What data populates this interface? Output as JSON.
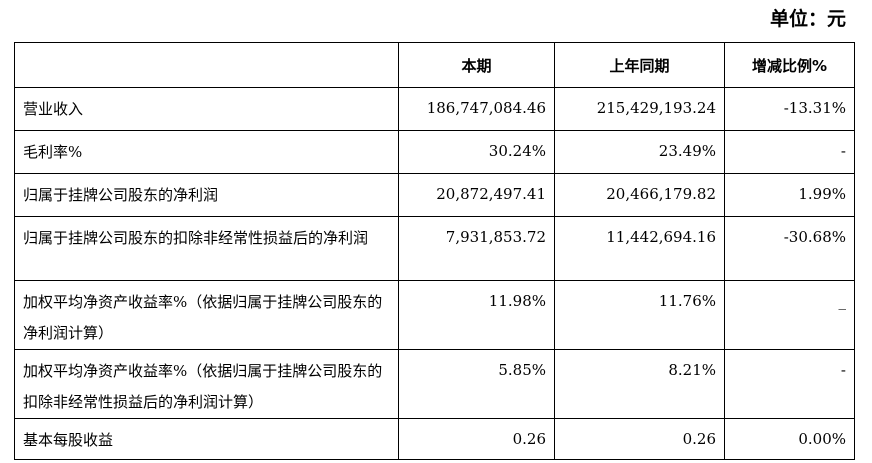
{
  "unit_label": "单位：元",
  "table": {
    "headers": [
      "",
      "本期",
      "上年同期",
      "增减比例%"
    ],
    "rows": [
      {
        "label": "营业收入",
        "current": "186,747,084.46",
        "prior": "215,429,193.24",
        "change": "-13.31%"
      },
      {
        "label": "毛利率%",
        "current": "30.24%",
        "prior": "23.49%",
        "change": "-"
      },
      {
        "label": "归属于挂牌公司股东的净利润",
        "current": "20,872,497.41",
        "prior": "20,466,179.82",
        "change": "1.99%"
      },
      {
        "label": "归属于挂牌公司股东的扣除非经常性损益后的净利润",
        "current": "7,931,853.72",
        "prior": "11,442,694.16",
        "change": "-30.68%"
      },
      {
        "label": "加权平均净资产收益率%（依据归属于挂牌公司股东的净利润计算）",
        "current": "11.98%",
        "prior": "11.76%",
        "change": "_"
      },
      {
        "label": "加权平均净资产收益率%（依据归属于挂牌公司股东的扣除非经常性损益后的净利润计算）",
        "current": "5.85%",
        "prior": "8.21%",
        "change": "-"
      },
      {
        "label": "基本每股收益",
        "current": "0.26",
        "prior": "0.26",
        "change": "0.00%"
      }
    ]
  }
}
